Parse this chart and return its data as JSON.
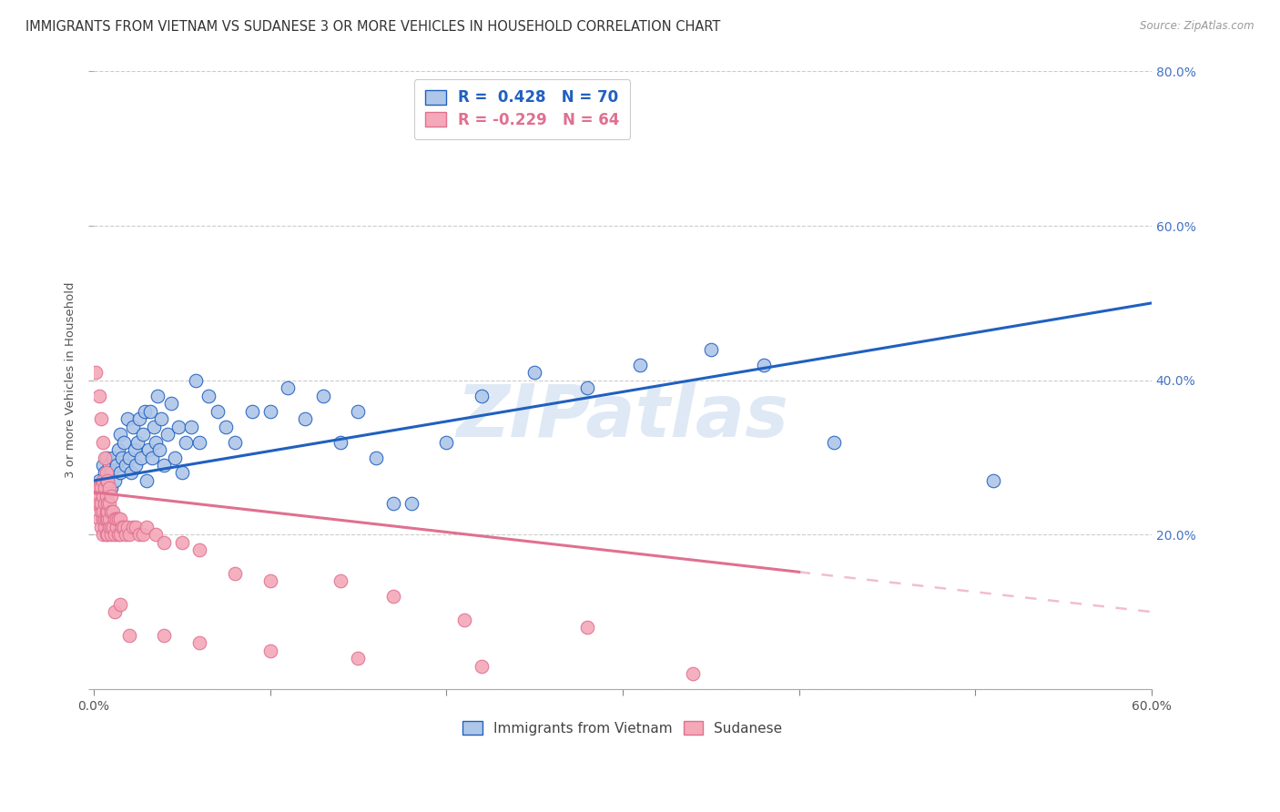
{
  "title": "IMMIGRANTS FROM VIETNAM VS SUDANESE 3 OR MORE VEHICLES IN HOUSEHOLD CORRELATION CHART",
  "source": "Source: ZipAtlas.com",
  "ylabel": "3 or more Vehicles in Household",
  "xlim": [
    0,
    0.6
  ],
  "ylim": [
    0,
    0.8
  ],
  "yticks": [
    0.0,
    0.2,
    0.4,
    0.6,
    0.8
  ],
  "r_vietnam": 0.428,
  "n_vietnam": 70,
  "r_sudanese": -0.229,
  "n_sudanese": 64,
  "vietnam_color": "#aec6e8",
  "sudanese_color": "#f4a8b8",
  "vietnam_line_color": "#2060c0",
  "sudanese_line_color": "#e07090",
  "background_color": "#ffffff",
  "grid_color": "#cccccc",
  "watermark": "ZIPatlas",
  "legend_vietnam": "Immigrants from Vietnam",
  "legend_sudanese": "Sudanese",
  "vietnam_scatter_x": [
    0.003,
    0.005,
    0.006,
    0.007,
    0.008,
    0.009,
    0.01,
    0.01,
    0.011,
    0.012,
    0.013,
    0.014,
    0.015,
    0.015,
    0.016,
    0.017,
    0.018,
    0.019,
    0.02,
    0.021,
    0.022,
    0.023,
    0.024,
    0.025,
    0.026,
    0.027,
    0.028,
    0.029,
    0.03,
    0.031,
    0.032,
    0.033,
    0.034,
    0.035,
    0.036,
    0.037,
    0.038,
    0.04,
    0.042,
    0.044,
    0.046,
    0.048,
    0.05,
    0.052,
    0.055,
    0.058,
    0.06,
    0.065,
    0.07,
    0.075,
    0.08,
    0.09,
    0.1,
    0.11,
    0.12,
    0.13,
    0.14,
    0.15,
    0.16,
    0.17,
    0.18,
    0.2,
    0.22,
    0.25,
    0.28,
    0.31,
    0.35,
    0.38,
    0.42,
    0.51
  ],
  "vietnam_scatter_y": [
    0.27,
    0.29,
    0.28,
    0.3,
    0.27,
    0.29,
    0.26,
    0.28,
    0.3,
    0.27,
    0.29,
    0.31,
    0.28,
    0.33,
    0.3,
    0.32,
    0.29,
    0.35,
    0.3,
    0.28,
    0.34,
    0.31,
    0.29,
    0.32,
    0.35,
    0.3,
    0.33,
    0.36,
    0.27,
    0.31,
    0.36,
    0.3,
    0.34,
    0.32,
    0.38,
    0.31,
    0.35,
    0.29,
    0.33,
    0.37,
    0.3,
    0.34,
    0.28,
    0.32,
    0.34,
    0.4,
    0.32,
    0.38,
    0.36,
    0.34,
    0.32,
    0.36,
    0.36,
    0.39,
    0.35,
    0.38,
    0.32,
    0.36,
    0.3,
    0.24,
    0.24,
    0.32,
    0.38,
    0.41,
    0.39,
    0.42,
    0.44,
    0.42,
    0.32,
    0.27
  ],
  "sudanese_scatter_x": [
    0.001,
    0.002,
    0.002,
    0.003,
    0.003,
    0.003,
    0.004,
    0.004,
    0.004,
    0.004,
    0.005,
    0.005,
    0.005,
    0.005,
    0.005,
    0.006,
    0.006,
    0.006,
    0.006,
    0.007,
    0.007,
    0.007,
    0.007,
    0.007,
    0.008,
    0.008,
    0.008,
    0.008,
    0.009,
    0.009,
    0.009,
    0.01,
    0.01,
    0.01,
    0.011,
    0.011,
    0.012,
    0.012,
    0.013,
    0.013,
    0.014,
    0.014,
    0.015,
    0.015,
    0.016,
    0.017,
    0.018,
    0.019,
    0.02,
    0.022,
    0.024,
    0.026,
    0.028,
    0.03,
    0.035,
    0.04,
    0.05,
    0.06,
    0.08,
    0.1,
    0.14,
    0.17,
    0.21,
    0.28
  ],
  "sudanese_scatter_y": [
    0.24,
    0.25,
    0.26,
    0.22,
    0.24,
    0.26,
    0.21,
    0.23,
    0.24,
    0.26,
    0.2,
    0.22,
    0.23,
    0.25,
    0.27,
    0.21,
    0.22,
    0.24,
    0.26,
    0.2,
    0.22,
    0.23,
    0.25,
    0.27,
    0.2,
    0.22,
    0.23,
    0.24,
    0.21,
    0.22,
    0.24,
    0.2,
    0.21,
    0.23,
    0.21,
    0.23,
    0.2,
    0.22,
    0.21,
    0.22,
    0.2,
    0.22,
    0.2,
    0.22,
    0.21,
    0.21,
    0.2,
    0.21,
    0.2,
    0.21,
    0.21,
    0.2,
    0.2,
    0.21,
    0.2,
    0.19,
    0.19,
    0.18,
    0.15,
    0.14,
    0.14,
    0.12,
    0.09,
    0.08
  ],
  "sudanese_outliers_x": [
    0.001,
    0.003,
    0.004,
    0.005,
    0.006,
    0.007,
    0.008,
    0.009,
    0.01,
    0.012,
    0.015,
    0.02,
    0.04,
    0.06,
    0.1,
    0.15,
    0.22,
    0.34
  ],
  "sudanese_outliers_y": [
    0.41,
    0.38,
    0.35,
    0.32,
    0.3,
    0.28,
    0.27,
    0.26,
    0.25,
    0.1,
    0.11,
    0.07,
    0.07,
    0.06,
    0.05,
    0.04,
    0.03,
    0.02
  ]
}
